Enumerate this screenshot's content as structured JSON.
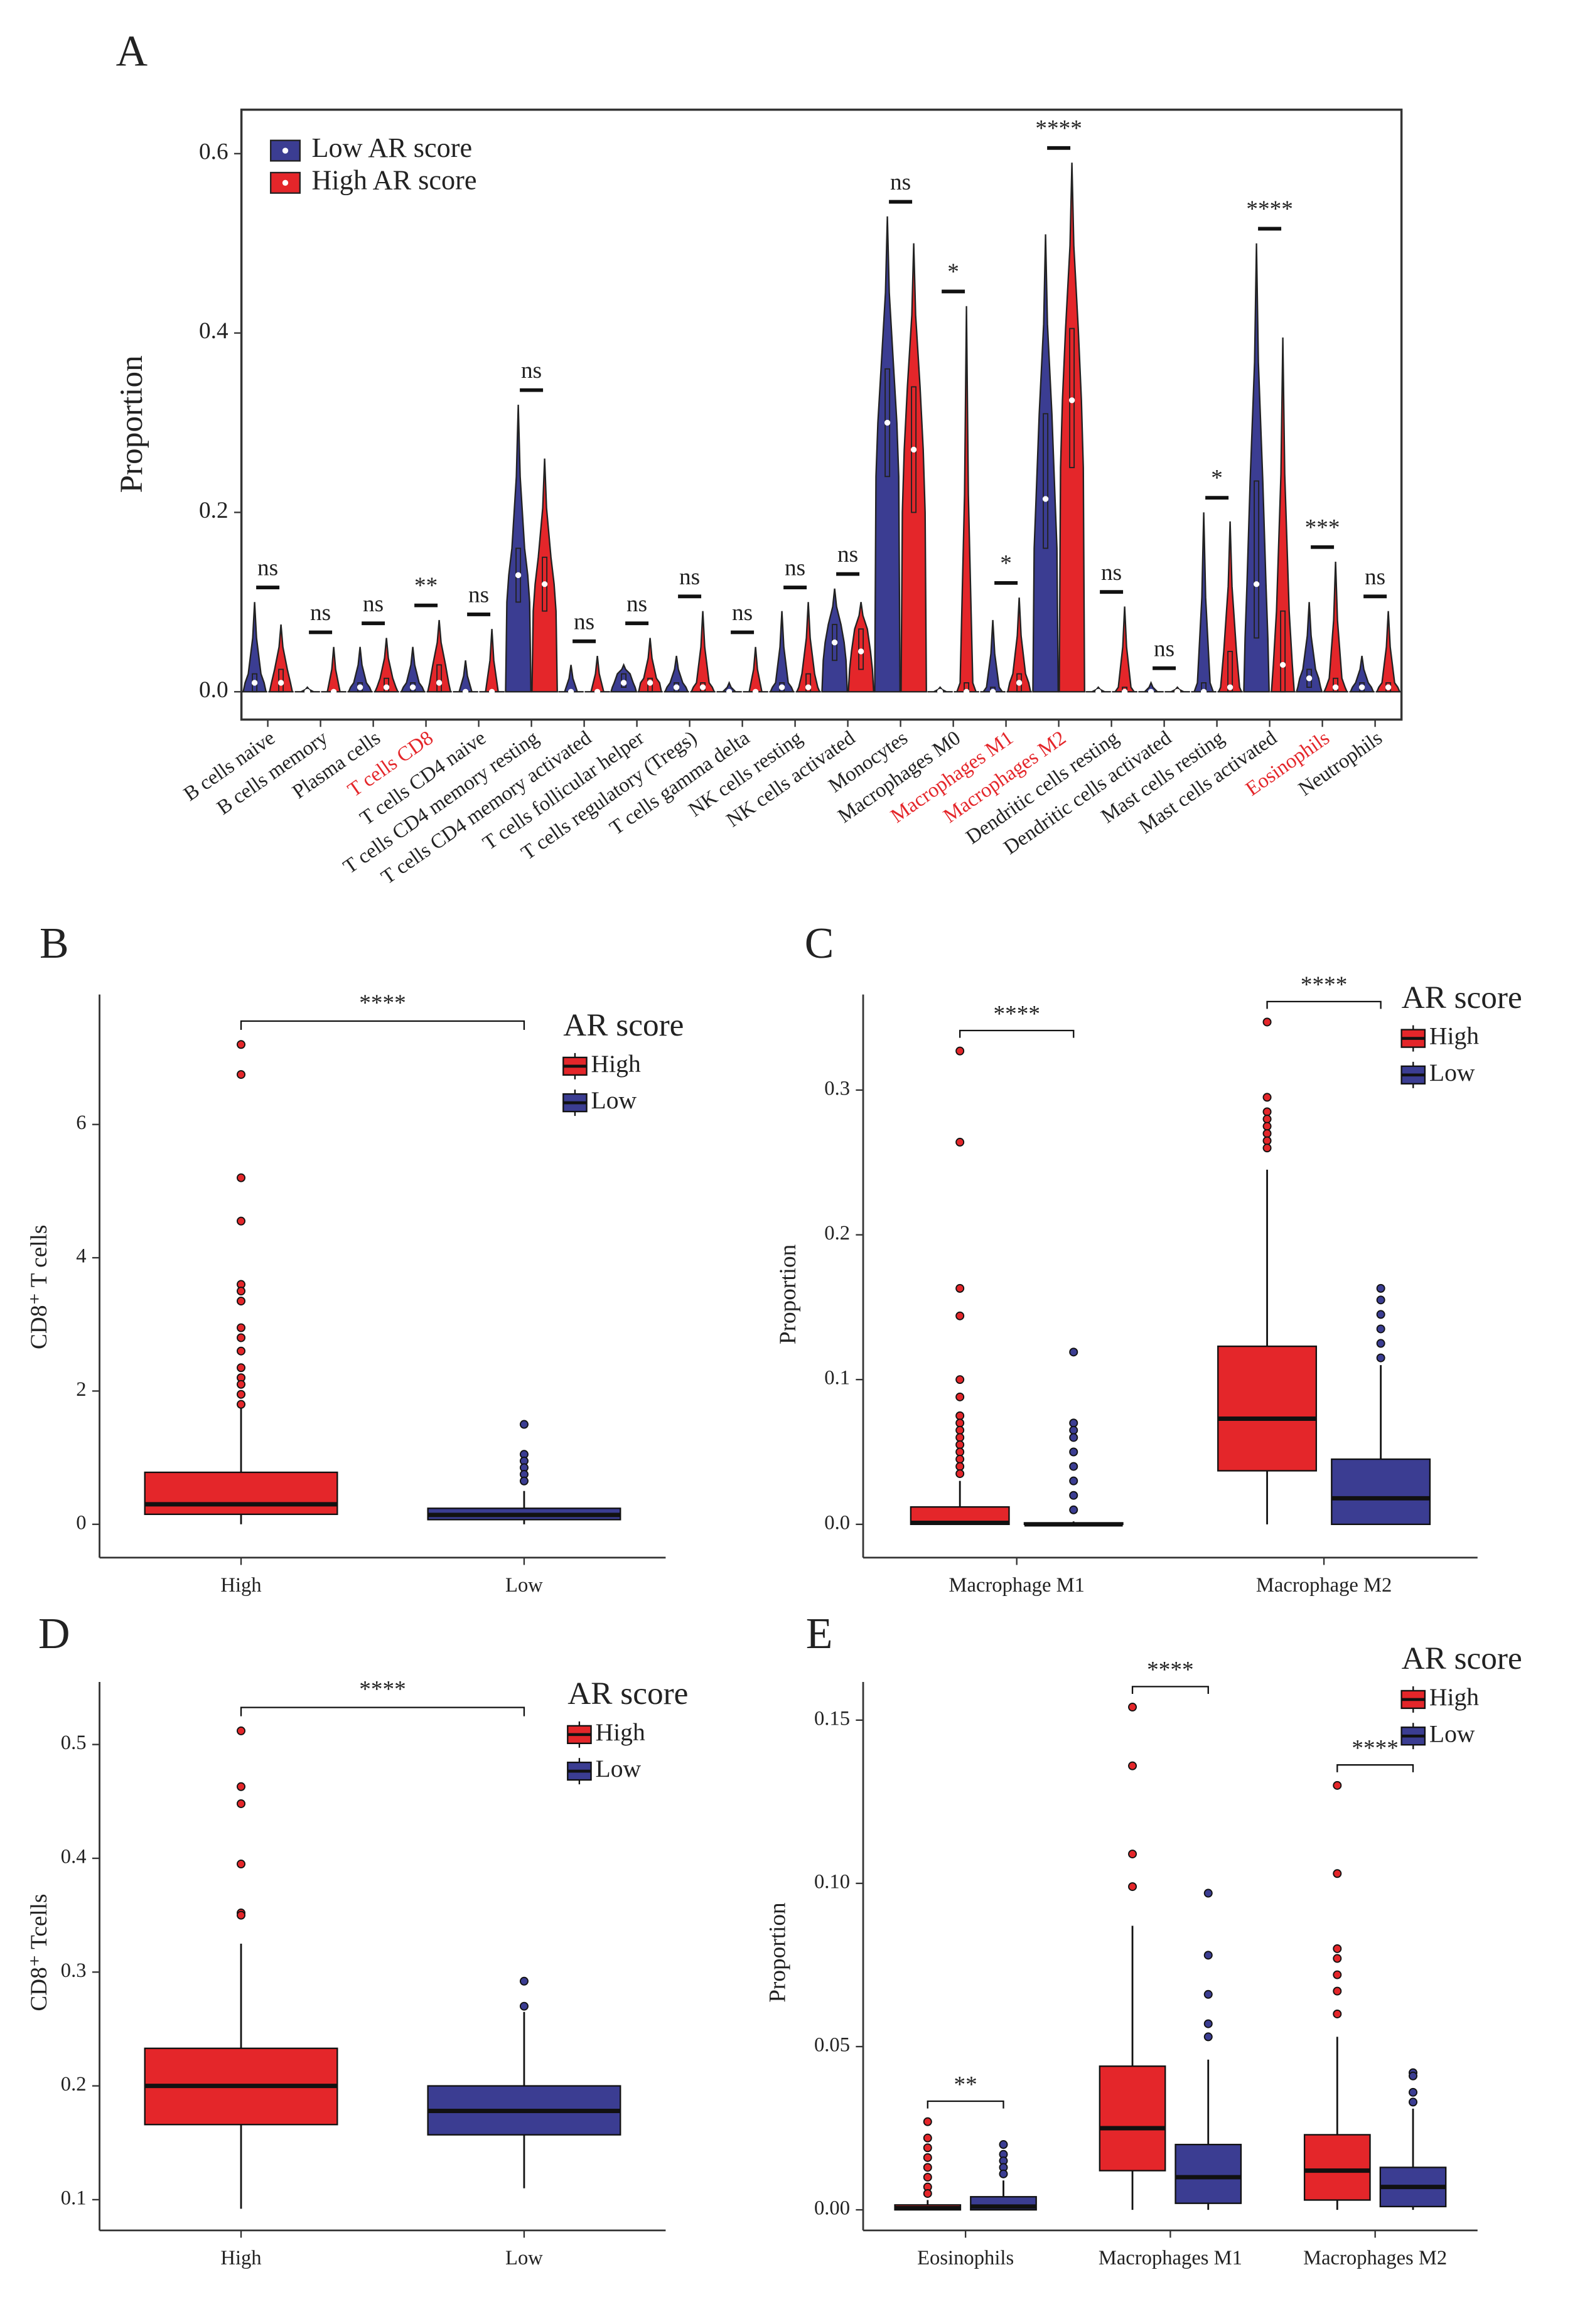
{
  "chart_data": [
    {
      "type": "violin",
      "panel": "A",
      "ylabel": "Proportion",
      "ylim": [
        -0.031,
        0.649
      ],
      "yticks": [
        {
          "value": 0,
          "label": "0.0"
        },
        0.2,
        0.4,
        0.6
      ],
      "categories": [
        "B cells naive",
        "B cells memory",
        "Plasma cells",
        "T cells CD8",
        "T cells CD4 naive",
        "T cells CD4 memory resting",
        "T cells CD4 memory activated",
        "T cells follicular helper",
        "T cells regulatory (Tregs)",
        "T cells gamma delta",
        "NK cells resting",
        "NK cells activated",
        "Monocytes",
        "Macrophages M0",
        "Macrophages M1",
        "Macrophages M2",
        "Dendritic cells resting",
        "Dendritic cells activated",
        "Mast cells resting",
        "Mast cells activated",
        "Eosinophils",
        "Neutrophils"
      ],
      "category_colors": [
        "#222222",
        "#222222",
        "#222222",
        "#e4262a",
        "#222222",
        "#222222",
        "#222222",
        "#222222",
        "#222222",
        "#222222",
        "#222222",
        "#222222",
        "#222222",
        "#222222",
        "#e4262a",
        "#e4262a",
        "#222222",
        "#222222",
        "#222222",
        "#222222",
        "#e4262a",
        "#222222"
      ],
      "significance": [
        "ns",
        "ns",
        "ns",
        "**",
        "ns",
        "ns",
        "ns",
        "ns",
        "ns",
        "ns",
        "ns",
        "ns",
        "ns",
        "*",
        "*",
        "****",
        "ns",
        "ns",
        "*",
        "****",
        "***",
        "ns"
      ],
      "legend": "top-left",
      "series": [
        {
          "name": "Low AR score",
          "color": "#3b3d92",
          "median": [
            0.01,
            0,
            0.005,
            0.005,
            0,
            0.13,
            0,
            0.01,
            0.005,
            0,
            0.005,
            0.055,
            0.3,
            0,
            0,
            0.215,
            0,
            0,
            0,
            0.12,
            0.015,
            0.005
          ],
          "q1": [
            0,
            0,
            0,
            0,
            0,
            0.1,
            0,
            0.005,
            0,
            0,
            0,
            0.035,
            0.24,
            0,
            0,
            0.16,
            0,
            0,
            0,
            0.06,
            0.005,
            0
          ],
          "q3": [
            0.02,
            0,
            0.01,
            0.01,
            0,
            0.16,
            0,
            0.02,
            0.01,
            0,
            0.01,
            0.075,
            0.36,
            0,
            0.005,
            0.31,
            0,
            0,
            0.01,
            0.235,
            0.025,
            0.01
          ],
          "max": [
            0.1,
            0.005,
            0.05,
            0.05,
            0.035,
            0.32,
            0.03,
            0.03,
            0.04,
            0.01,
            0.09,
            0.115,
            0.53,
            0.005,
            0.08,
            0.51,
            0.005,
            0.01,
            0.2,
            0.5,
            0.1,
            0.04
          ]
        },
        {
          "name": "High AR score",
          "color": "#e4262a",
          "median": [
            0.01,
            0,
            0.005,
            0.01,
            0,
            0.12,
            0,
            0.01,
            0.005,
            0,
            0.005,
            0.045,
            0.27,
            0,
            0.01,
            0.325,
            0,
            0,
            0.005,
            0.03,
            0.005,
            0.005
          ],
          "q1": [
            0,
            0,
            0,
            0,
            0,
            0.09,
            0,
            0,
            0,
            0,
            0,
            0.025,
            0.2,
            0,
            0,
            0.25,
            0,
            0,
            0,
            0,
            0,
            0
          ],
          "q3": [
            0.025,
            0,
            0.015,
            0.03,
            0,
            0.15,
            0,
            0.015,
            0.01,
            0,
            0.02,
            0.07,
            0.34,
            0.01,
            0.02,
            0.405,
            0.005,
            0,
            0.045,
            0.09,
            0.015,
            0.01
          ],
          "max": [
            0.075,
            0.05,
            0.06,
            0.08,
            0.07,
            0.26,
            0.04,
            0.06,
            0.09,
            0.05,
            0.1,
            0.1,
            0.5,
            0.43,
            0.105,
            0.59,
            0.095,
            0.005,
            0.19,
            0.395,
            0.145,
            0.09
          ]
        }
      ]
    },
    {
      "type": "box",
      "panel": "B",
      "ylabel": "CD8⁺ T cells",
      "legend_title": "AR score",
      "ylim": [
        -0.5,
        7.95
      ],
      "yticks": [
        0,
        2,
        4,
        6
      ],
      "categories": [
        "High",
        "Low"
      ],
      "significance": [
        "****"
      ],
      "series": [
        {
          "name": "High",
          "color": "#e4262a",
          "q1": [
            0.15,
            null
          ],
          "median": [
            0.3,
            null
          ],
          "q3": [
            0.78,
            null
          ],
          "whisker_low": [
            0,
            null
          ],
          "whisker_high": [
            1.75,
            null
          ],
          "outliers": [
            [
              7.2,
              6.75,
              5.2,
              4.55,
              3.6,
              3.5,
              3.35,
              2.95,
              2.8,
              2.6,
              2.35,
              2.2,
              2.1,
              1.95,
              1.8
            ],
            null
          ]
        },
        {
          "name": "Low",
          "color": "#3b3d92",
          "q1": [
            null,
            0.07
          ],
          "median": [
            null,
            0.14
          ],
          "q3": [
            null,
            0.24
          ],
          "whisker_low": [
            null,
            0
          ],
          "whisker_high": [
            null,
            0.5
          ],
          "outliers": [
            null,
            [
              1.5,
              1.05,
              0.95,
              0.85,
              0.75,
              0.65
            ]
          ]
        }
      ]
    },
    {
      "type": "box",
      "panel": "C",
      "ylabel": "Proportion",
      "legend_title": "AR score",
      "ylim": [
        -0.023,
        0.366
      ],
      "yticks": [
        {
          "value": 0,
          "label": "0.0"
        },
        0.1,
        0.2,
        0.3
      ],
      "categories": [
        "Macrophage M1",
        "Macrophage M2"
      ],
      "significance": [
        "****",
        "****"
      ],
      "series": [
        {
          "name": "High",
          "color": "#e4262a",
          "q1": [
            0,
            0.037
          ],
          "median": [
            0.001,
            0.073
          ],
          "q3": [
            0.012,
            0.123
          ],
          "whisker_low": [
            0,
            0
          ],
          "whisker_high": [
            0.03,
            0.245
          ],
          "outliers": [
            [
              0.327,
              0.264,
              0.163,
              0.144,
              0.1,
              0.088,
              0.075,
              0.07,
              0.065,
              0.06,
              0.055,
              0.05,
              0.045,
              0.04,
              0.035
            ],
            [
              0.347,
              0.295,
              0.285,
              0.28,
              0.275,
              0.27,
              0.265,
              0.26
            ]
          ]
        },
        {
          "name": "Low",
          "color": "#3b3d92",
          "q1": [
            0,
            0
          ],
          "median": [
            0,
            0.018
          ],
          "q3": [
            0.001,
            0.045
          ],
          "whisker_low": [
            0,
            0
          ],
          "whisker_high": [
            0.002,
            0.11
          ],
          "outliers": [
            [
              0.119,
              0.07,
              0.065,
              0.06,
              0.05,
              0.04,
              0.03,
              0.02,
              0.01
            ],
            [
              0.163,
              0.155,
              0.145,
              0.135,
              0.125,
              0.115
            ]
          ]
        }
      ]
    },
    {
      "type": "box",
      "panel": "D",
      "ylabel": "CD8⁺ Tcells",
      "legend_title": "AR score",
      "ylim": [
        0.073,
        0.555
      ],
      "yticks": [
        0.1,
        0.2,
        0.3,
        0.4,
        0.5
      ],
      "categories": [
        "High",
        "Low"
      ],
      "significance": [
        "****"
      ],
      "series": [
        {
          "name": "High",
          "color": "#e4262a",
          "q1": [
            0.166,
            null
          ],
          "median": [
            0.2,
            null
          ],
          "q3": [
            0.233,
            null
          ],
          "whisker_low": [
            0.092,
            null
          ],
          "whisker_high": [
            0.325,
            null
          ],
          "outliers": [
            [
              0.512,
              0.463,
              0.448,
              0.395,
              0.352,
              0.35
            ],
            null
          ]
        },
        {
          "name": "Low",
          "color": "#3b3d92",
          "q1": [
            null,
            0.157
          ],
          "median": [
            null,
            0.178
          ],
          "q3": [
            null,
            0.2
          ],
          "whisker_low": [
            null,
            0.11
          ],
          "whisker_high": [
            null,
            0.265
          ],
          "outliers": [
            null,
            [
              0.292,
              0.27
            ]
          ]
        }
      ]
    },
    {
      "type": "box",
      "panel": "E",
      "ylabel": "Proportion",
      "legend_title": "AR score",
      "ylim": [
        -0.0063,
        0.1617
      ],
      "yticks": [
        {
          "value": 0,
          "label": "0.00"
        },
        0.05,
        {
          "value": 0.1,
          "label": "0.10"
        },
        0.15
      ],
      "categories": [
        "Eosinophils",
        "Macrophages M1",
        "Macrophages M2"
      ],
      "significance": [
        "**",
        "****",
        "****"
      ],
      "series": [
        {
          "name": "High",
          "color": "#e4262a",
          "q1": [
            0,
            0.012,
            0.003
          ],
          "median": [
            0.0005,
            0.025,
            0.012
          ],
          "q3": [
            0.0015,
            0.044,
            0.023
          ],
          "whisker_low": [
            0,
            0,
            0
          ],
          "whisker_high": [
            0.003,
            0.087,
            0.053
          ],
          "outliers": [
            [
              0.027,
              0.022,
              0.019,
              0.016,
              0.013,
              0.01,
              0.007,
              0.005
            ],
            [
              0.154,
              0.136,
              0.109,
              0.099
            ],
            [
              0.13,
              0.103,
              0.08,
              0.077,
              0.072,
              0.067,
              0.06
            ]
          ]
        },
        {
          "name": "Low",
          "color": "#3b3d92",
          "q1": [
            0,
            0.002,
            0.001
          ],
          "median": [
            0.001,
            0.01,
            0.007
          ],
          "q3": [
            0.004,
            0.02,
            0.013
          ],
          "whisker_low": [
            0,
            0,
            0
          ],
          "whisker_high": [
            0.009,
            0.046,
            0.031
          ],
          "outliers": [
            [
              0.02,
              0.017,
              0.015,
              0.013,
              0.011
            ],
            [
              0.097,
              0.078,
              0.066,
              0.057,
              0.053
            ],
            [
              0.042,
              0.041,
              0.036,
              0.033
            ]
          ]
        }
      ]
    }
  ]
}
